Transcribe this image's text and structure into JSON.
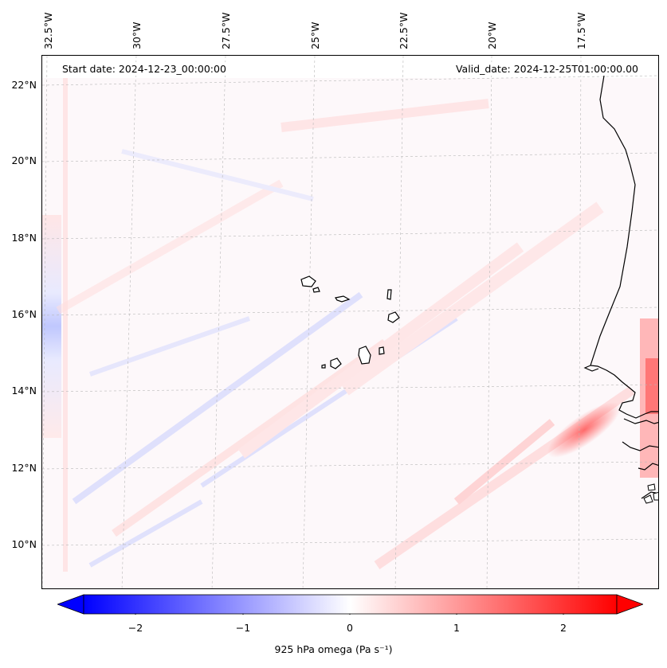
{
  "map": {
    "start_label": "Start date: 2024-12-23_00:00:00",
    "valid_label": "Valid_date: 2024-12-25T01:00:00.00",
    "lon_ticks": [
      "32.5°W",
      "30°W",
      "27.5°W",
      "25°W",
      "22.5°W",
      "20°W",
      "17.5°W"
    ],
    "lat_ticks": [
      "22°N",
      "20°N",
      "18°N",
      "16°N",
      "14°N",
      "12°N",
      "10°N"
    ],
    "gridlines": "dashed"
  },
  "colorbar": {
    "label": "925 hPa omega (Pa s⁻¹)",
    "ticks": [
      "−2",
      "−1",
      "0",
      "1",
      "2"
    ],
    "range": [
      -2.5,
      2.5
    ],
    "colors": {
      "negative": "#0000ff",
      "zero": "#ffffff",
      "positive": "#ff0000"
    }
  }
}
